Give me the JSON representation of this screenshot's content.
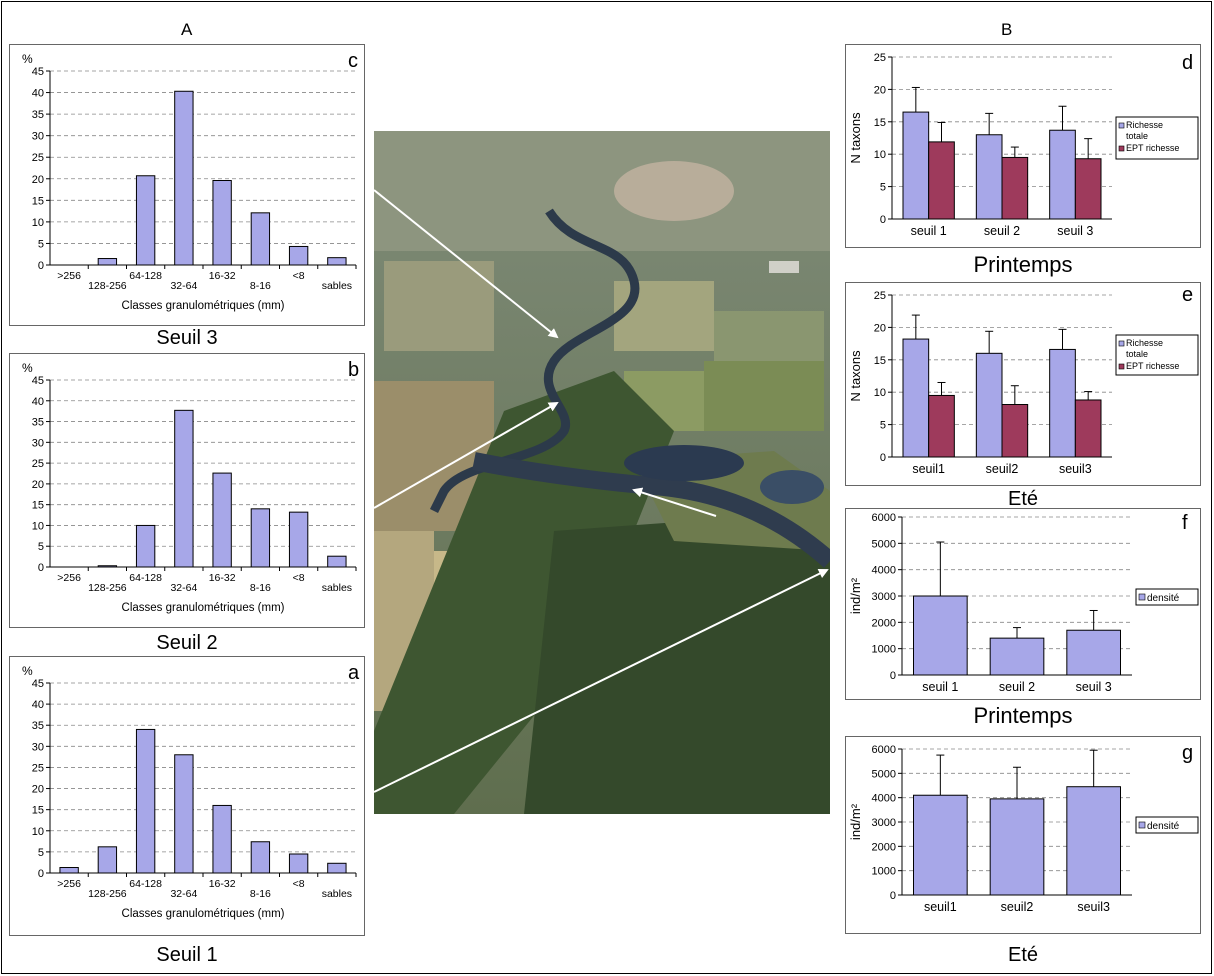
{
  "header": {
    "col_a": "A",
    "col_b": "B"
  },
  "captions": {
    "c": "Seuil 3",
    "b": "Seuil 2",
    "a": "Seuil 1",
    "d": "Printemps",
    "e": "Eté",
    "f": "Printemps",
    "g": "Eté"
  },
  "colors": {
    "bar_blue": "#a7a7e8",
    "bar_red": "#9e3a5c",
    "grid": "#888888"
  },
  "photo": {
    "icon": "aerial-river-photo"
  },
  "chart_data": [
    {
      "id": "c",
      "type": "bar",
      "letter": "c",
      "unit_label": "%",
      "categories": [
        ">256",
        "128-256",
        "64-128",
        "32-64",
        "16-32",
        "8-16",
        "<8",
        "sables"
      ],
      "values": [
        0,
        1.5,
        20.7,
        40.3,
        19.6,
        12.1,
        4.3,
        1.7
      ],
      "xlabel": "Classes granulométriques (mm)",
      "ylim": [
        0,
        45
      ],
      "yticks": [
        0,
        5,
        10,
        15,
        20,
        25,
        30,
        35,
        40,
        45
      ]
    },
    {
      "id": "b",
      "type": "bar",
      "letter": "b",
      "unit_label": "%",
      "categories": [
        ">256",
        "128-256",
        "64-128",
        "32-64",
        "16-32",
        "8-16",
        "<8",
        "sables"
      ],
      "values": [
        0,
        0.3,
        10,
        37.7,
        22.6,
        14,
        13.2,
        2.6
      ],
      "xlabel": "Classes granulométriques (mm)",
      "ylim": [
        0,
        45
      ],
      "yticks": [
        0,
        5,
        10,
        15,
        20,
        25,
        30,
        35,
        40,
        45
      ]
    },
    {
      "id": "a",
      "type": "bar",
      "letter": "a",
      "unit_label": "%",
      "categories": [
        ">256",
        "128-256",
        "64-128",
        "32-64",
        "16-32",
        "8-16",
        "<8",
        "sables"
      ],
      "values": [
        1.3,
        6.2,
        34,
        28,
        16,
        7.4,
        4.5,
        2.3
      ],
      "xlabel": "Classes granulométriques (mm)",
      "ylim": [
        0,
        45
      ],
      "yticks": [
        0,
        5,
        10,
        15,
        20,
        25,
        30,
        35,
        40,
        45
      ]
    },
    {
      "id": "d",
      "type": "bar",
      "letter": "d",
      "ylabel": "N taxons",
      "categories": [
        "seuil 1",
        "seuil 2",
        "seuil 3"
      ],
      "series": [
        {
          "name": "Richesse totale",
          "values": [
            16.5,
            13,
            13.7
          ],
          "err": [
            3.8,
            3.3,
            3.7
          ]
        },
        {
          "name": "EPT richesse",
          "values": [
            11.9,
            9.5,
            9.3
          ],
          "err": [
            3,
            1.6,
            3.1
          ]
        }
      ],
      "ylim": [
        0,
        25
      ],
      "yticks": [
        0,
        5,
        10,
        15,
        20,
        25
      ]
    },
    {
      "id": "e",
      "type": "bar",
      "letter": "e",
      "ylabel": "N taxons",
      "categories": [
        "seuil1",
        "seuil2",
        "seuil3"
      ],
      "series": [
        {
          "name": "Richesse totale",
          "values": [
            18.2,
            16,
            16.6
          ],
          "err": [
            3.7,
            3.4,
            3.1
          ]
        },
        {
          "name": "EPT richesse",
          "values": [
            9.5,
            8.1,
            8.8
          ],
          "err": [
            2,
            2.9,
            1.3
          ]
        }
      ],
      "ylim": [
        0,
        25
      ],
      "yticks": [
        0,
        5,
        10,
        15,
        20,
        25
      ]
    },
    {
      "id": "f",
      "type": "bar",
      "letter": "f",
      "ylabel": "ind/m²",
      "categories": [
        "seuil 1",
        "seuil 2",
        "seuil 3"
      ],
      "series": [
        {
          "name": "densité",
          "values": [
            3000,
            1400,
            1700
          ],
          "err": [
            2050,
            400,
            750
          ]
        }
      ],
      "ylim": [
        0,
        6000
      ],
      "yticks": [
        0,
        1000,
        2000,
        3000,
        4000,
        5000,
        6000
      ]
    },
    {
      "id": "g",
      "type": "bar",
      "letter": "g",
      "ylabel": "ind/m²",
      "categories": [
        "seuil1",
        "seuil2",
        "seuil3"
      ],
      "series": [
        {
          "name": "densité",
          "values": [
            4100,
            3950,
            4450
          ],
          "err": [
            1650,
            1300,
            1500
          ]
        }
      ],
      "ylim": [
        0,
        6000
      ],
      "yticks": [
        0,
        1000,
        2000,
        3000,
        4000,
        5000,
        6000
      ]
    }
  ]
}
